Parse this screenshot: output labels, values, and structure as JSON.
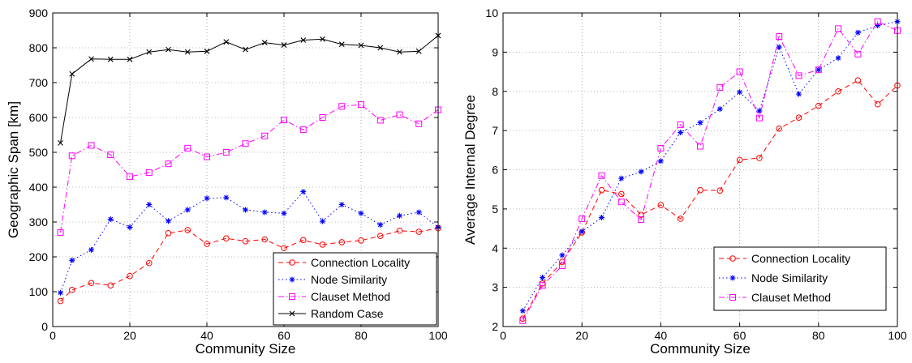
{
  "chart_data": [
    {
      "type": "line",
      "title": "",
      "xlabel": "Community Size",
      "ylabel": "Geographic Span [km]",
      "xlim": [
        0,
        100
      ],
      "ylim": [
        0,
        900
      ],
      "xticks": [
        0,
        20,
        40,
        60,
        80,
        100
      ],
      "yticks": [
        0,
        100,
        200,
        300,
        400,
        500,
        600,
        700,
        800,
        900
      ],
      "grid": true,
      "legend_position": "bottom-right",
      "series": [
        {
          "name": "Connection Locality",
          "color": "#ff0000",
          "line": "dashed",
          "marker": "circle",
          "x": [
            2,
            5,
            10,
            15,
            20,
            25,
            30,
            35,
            40,
            45,
            50,
            55,
            60,
            65,
            70,
            75,
            80,
            85,
            90,
            95,
            100
          ],
          "y": [
            73,
            105,
            125,
            118,
            145,
            182,
            268,
            277,
            237,
            253,
            245,
            250,
            225,
            248,
            235,
            242,
            247,
            260,
            275,
            272,
            282
          ]
        },
        {
          "name": "Node Similarity",
          "color": "#0000ff",
          "line": "dotted",
          "marker": "star",
          "x": [
            2,
            5,
            10,
            15,
            20,
            25,
            30,
            35,
            40,
            45,
            50,
            55,
            60,
            65,
            70,
            75,
            80,
            85,
            90,
            95,
            100
          ],
          "y": [
            97,
            190,
            220,
            308,
            285,
            350,
            303,
            335,
            368,
            370,
            335,
            328,
            325,
            387,
            302,
            350,
            325,
            292,
            318,
            328,
            285
          ]
        },
        {
          "name": "Clauset Method",
          "color": "#ff00ff",
          "line": "dashdot",
          "marker": "square",
          "x": [
            2,
            5,
            10,
            15,
            20,
            25,
            30,
            35,
            40,
            45,
            50,
            55,
            60,
            65,
            70,
            75,
            80,
            85,
            90,
            95,
            100
          ],
          "y": [
            270,
            490,
            520,
            493,
            430,
            442,
            467,
            512,
            487,
            500,
            525,
            547,
            593,
            565,
            600,
            632,
            637,
            592,
            608,
            582,
            622
          ]
        },
        {
          "name": "Random Case",
          "color": "#000000",
          "line": "solid",
          "marker": "x",
          "x": [
            2,
            5,
            10,
            15,
            20,
            25,
            30,
            35,
            40,
            45,
            50,
            55,
            60,
            65,
            70,
            75,
            80,
            85,
            90,
            95,
            100
          ],
          "y": [
            527,
            725,
            768,
            767,
            767,
            788,
            795,
            788,
            790,
            817,
            795,
            815,
            808,
            822,
            825,
            810,
            807,
            800,
            788,
            790,
            835
          ]
        }
      ]
    },
    {
      "type": "line",
      "title": "",
      "xlabel": "Community Size",
      "ylabel": "Average Internal Degree",
      "xlim": [
        0,
        100
      ],
      "ylim": [
        2,
        10
      ],
      "xticks": [
        0,
        20,
        40,
        60,
        80,
        100
      ],
      "yticks": [
        2,
        3,
        4,
        5,
        6,
        7,
        8,
        9,
        10
      ],
      "grid": true,
      "legend_position": "bottom-right",
      "series": [
        {
          "name": "Connection Locality",
          "color": "#ff0000",
          "line": "dashed",
          "marker": "circle",
          "x": [
            5,
            10,
            15,
            20,
            25,
            30,
            35,
            40,
            45,
            50,
            55,
            60,
            65,
            70,
            75,
            80,
            85,
            90,
            95,
            100
          ],
          "y": [
            2.2,
            3.1,
            3.65,
            4.4,
            5.48,
            5.38,
            4.85,
            5.1,
            4.75,
            5.48,
            5.47,
            6.25,
            6.3,
            7.05,
            7.33,
            7.63,
            8.0,
            8.28,
            7.67,
            8.15
          ]
        },
        {
          "name": "Node Similarity",
          "color": "#0000ff",
          "line": "dotted",
          "marker": "star",
          "x": [
            5,
            10,
            15,
            20,
            25,
            30,
            35,
            40,
            45,
            50,
            55,
            60,
            65,
            70,
            75,
            80,
            85,
            90,
            95,
            100
          ],
          "y": [
            2.4,
            3.25,
            3.82,
            4.42,
            4.78,
            5.78,
            5.95,
            6.22,
            6.95,
            7.2,
            7.55,
            7.98,
            7.5,
            9.13,
            7.93,
            8.55,
            8.85,
            9.5,
            9.68,
            9.78
          ]
        },
        {
          "name": "Clauset Method",
          "color": "#ff00ff",
          "line": "dashdot",
          "marker": "square",
          "x": [
            5,
            10,
            15,
            20,
            25,
            30,
            35,
            40,
            45,
            50,
            55,
            60,
            65,
            70,
            75,
            80,
            85,
            90,
            95,
            100
          ],
          "y": [
            2.15,
            3.05,
            3.55,
            4.75,
            5.85,
            5.18,
            4.73,
            6.55,
            7.15,
            6.6,
            8.1,
            8.5,
            7.32,
            9.4,
            8.4,
            8.55,
            9.6,
            8.95,
            9.78,
            9.55
          ]
        }
      ]
    }
  ]
}
